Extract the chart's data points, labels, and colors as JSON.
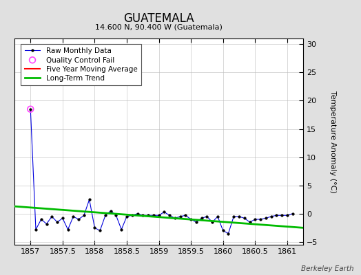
{
  "title": "GUATEMALA",
  "subtitle": "14.600 N, 90.400 W (Guatemala)",
  "ylabel": "Temperature Anomaly (°C)",
  "watermark": "Berkeley Earth",
  "xlim": [
    1856.75,
    1861.25
  ],
  "ylim": [
    -5.5,
    31
  ],
  "yticks": [
    -5,
    0,
    5,
    10,
    15,
    20,
    25,
    30
  ],
  "xticks": [
    1857,
    1857.5,
    1858,
    1858.5,
    1859,
    1859.5,
    1860,
    1860.5,
    1861
  ],
  "background_color": "#e0e0e0",
  "plot_bg_color": "#ffffff",
  "raw_color": "#0000dd",
  "qc_fail_color": "#ff44ff",
  "moving_avg_color": "#ff0000",
  "trend_color": "#00bb00",
  "raw_data": {
    "x": [
      1857.0,
      1857.083,
      1857.167,
      1857.25,
      1857.333,
      1857.417,
      1857.5,
      1857.583,
      1857.667,
      1857.75,
      1857.833,
      1857.917,
      1858.0,
      1858.083,
      1858.167,
      1858.25,
      1858.333,
      1858.417,
      1858.5,
      1858.583,
      1858.667,
      1858.75,
      1858.833,
      1858.917,
      1859.0,
      1859.083,
      1859.167,
      1859.25,
      1859.333,
      1859.417,
      1859.5,
      1859.583,
      1859.667,
      1859.75,
      1859.833,
      1859.917,
      1860.0,
      1860.083,
      1860.167,
      1860.25,
      1860.333,
      1860.417,
      1860.5,
      1860.583,
      1860.667,
      1860.75,
      1860.833,
      1860.917,
      1861.0,
      1861.083
    ],
    "y": [
      18.5,
      -2.8,
      -1.0,
      -1.8,
      -0.5,
      -1.5,
      -0.8,
      -2.8,
      -0.5,
      -1.0,
      -0.3,
      2.5,
      -2.5,
      -3.0,
      -0.3,
      0.5,
      -0.3,
      -2.8,
      -0.5,
      -0.3,
      0.0,
      -0.3,
      -0.3,
      -0.3,
      -0.3,
      0.3,
      -0.3,
      -0.8,
      -0.5,
      -0.3,
      -1.0,
      -1.5,
      -0.8,
      -0.5,
      -1.5,
      -0.5,
      -3.0,
      -3.5,
      -0.5,
      -0.5,
      -0.8,
      -1.5,
      -1.0,
      -1.0,
      -0.8,
      -0.5,
      -0.3,
      -0.3,
      -0.3,
      0.0
    ]
  },
  "qc_fail_points": {
    "x": [
      1857.0
    ],
    "y": [
      18.5
    ]
  },
  "trend_data": {
    "x": [
      1856.75,
      1861.25
    ],
    "y": [
      1.3,
      -2.5
    ]
  }
}
